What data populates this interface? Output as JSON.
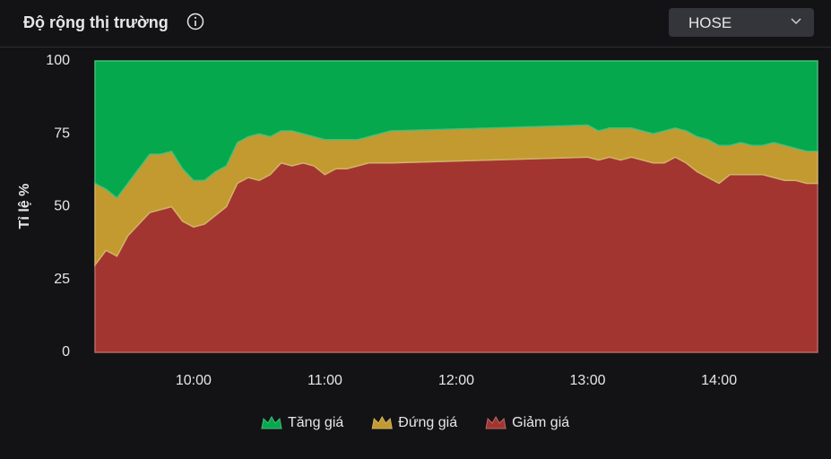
{
  "header": {
    "title": "Độ rộng thị trường",
    "dropdown": "HOSE"
  },
  "chart_data": {
    "type": "stacked-area",
    "y_label": "Tỉ lệ %",
    "x": [
      "09:15",
      "09:20",
      "09:25",
      "09:30",
      "09:35",
      "09:40",
      "09:45",
      "09:50",
      "09:55",
      "10:00",
      "10:05",
      "10:10",
      "10:15",
      "10:20",
      "10:25",
      "10:30",
      "10:35",
      "10:40",
      "10:45",
      "10:50",
      "10:55",
      "11:00",
      "11:05",
      "11:10",
      "11:15",
      "11:20",
      "11:25",
      "11:30",
      "13:00",
      "13:05",
      "13:10",
      "13:15",
      "13:20",
      "13:25",
      "13:30",
      "13:35",
      "13:40",
      "13:45",
      "13:50",
      "13:55",
      "14:00",
      "14:05",
      "14:10",
      "14:15",
      "14:20",
      "14:25",
      "14:30",
      "14:35",
      "14:40",
      "14:45"
    ],
    "xlim": [
      "09:15",
      "14:45"
    ],
    "xticks": [
      "10:00",
      "11:00",
      "12:00",
      "13:00",
      "14:00"
    ],
    "ylim": [
      0,
      100
    ],
    "yticks": [
      0,
      25,
      50,
      75,
      100
    ],
    "series": [
      {
        "name": "Tăng giá",
        "color": "#05a84c",
        "values": [
          42,
          44,
          47,
          42,
          37,
          32,
          32,
          31,
          37,
          41,
          41,
          38,
          36,
          28,
          26,
          25,
          26,
          24,
          24,
          25,
          26,
          27,
          27,
          27,
          27,
          26,
          25,
          24,
          22,
          24,
          23,
          23,
          23,
          24,
          25,
          24,
          23,
          24,
          26,
          27,
          29,
          29,
          28,
          29,
          29,
          28,
          29,
          30,
          31,
          31
        ]
      },
      {
        "name": "Đứng giá",
        "color": "#c29a30",
        "values": [
          28,
          21,
          20,
          18,
          19,
          20,
          19,
          19,
          18,
          16,
          15,
          15,
          14,
          14,
          14,
          16,
          13,
          11,
          12,
          10,
          10,
          12,
          10,
          10,
          9,
          9,
          10,
          11,
          11,
          10,
          10,
          11,
          10,
          10,
          10,
          11,
          10,
          11,
          12,
          13,
          13,
          10,
          11,
          10,
          10,
          12,
          12,
          11,
          11,
          11
        ]
      },
      {
        "name": "Giảm giá",
        "color": "#a33530",
        "values": [
          30,
          35,
          33,
          40,
          44,
          48,
          49,
          50,
          45,
          43,
          44,
          47,
          50,
          58,
          60,
          59,
          61,
          65,
          64,
          65,
          64,
          61,
          63,
          63,
          64,
          65,
          65,
          65,
          67,
          66,
          67,
          66,
          67,
          66,
          65,
          65,
          67,
          65,
          62,
          60,
          58,
          61,
          61,
          61,
          61,
          60,
          59,
          59,
          58,
          58
        ]
      }
    ]
  }
}
